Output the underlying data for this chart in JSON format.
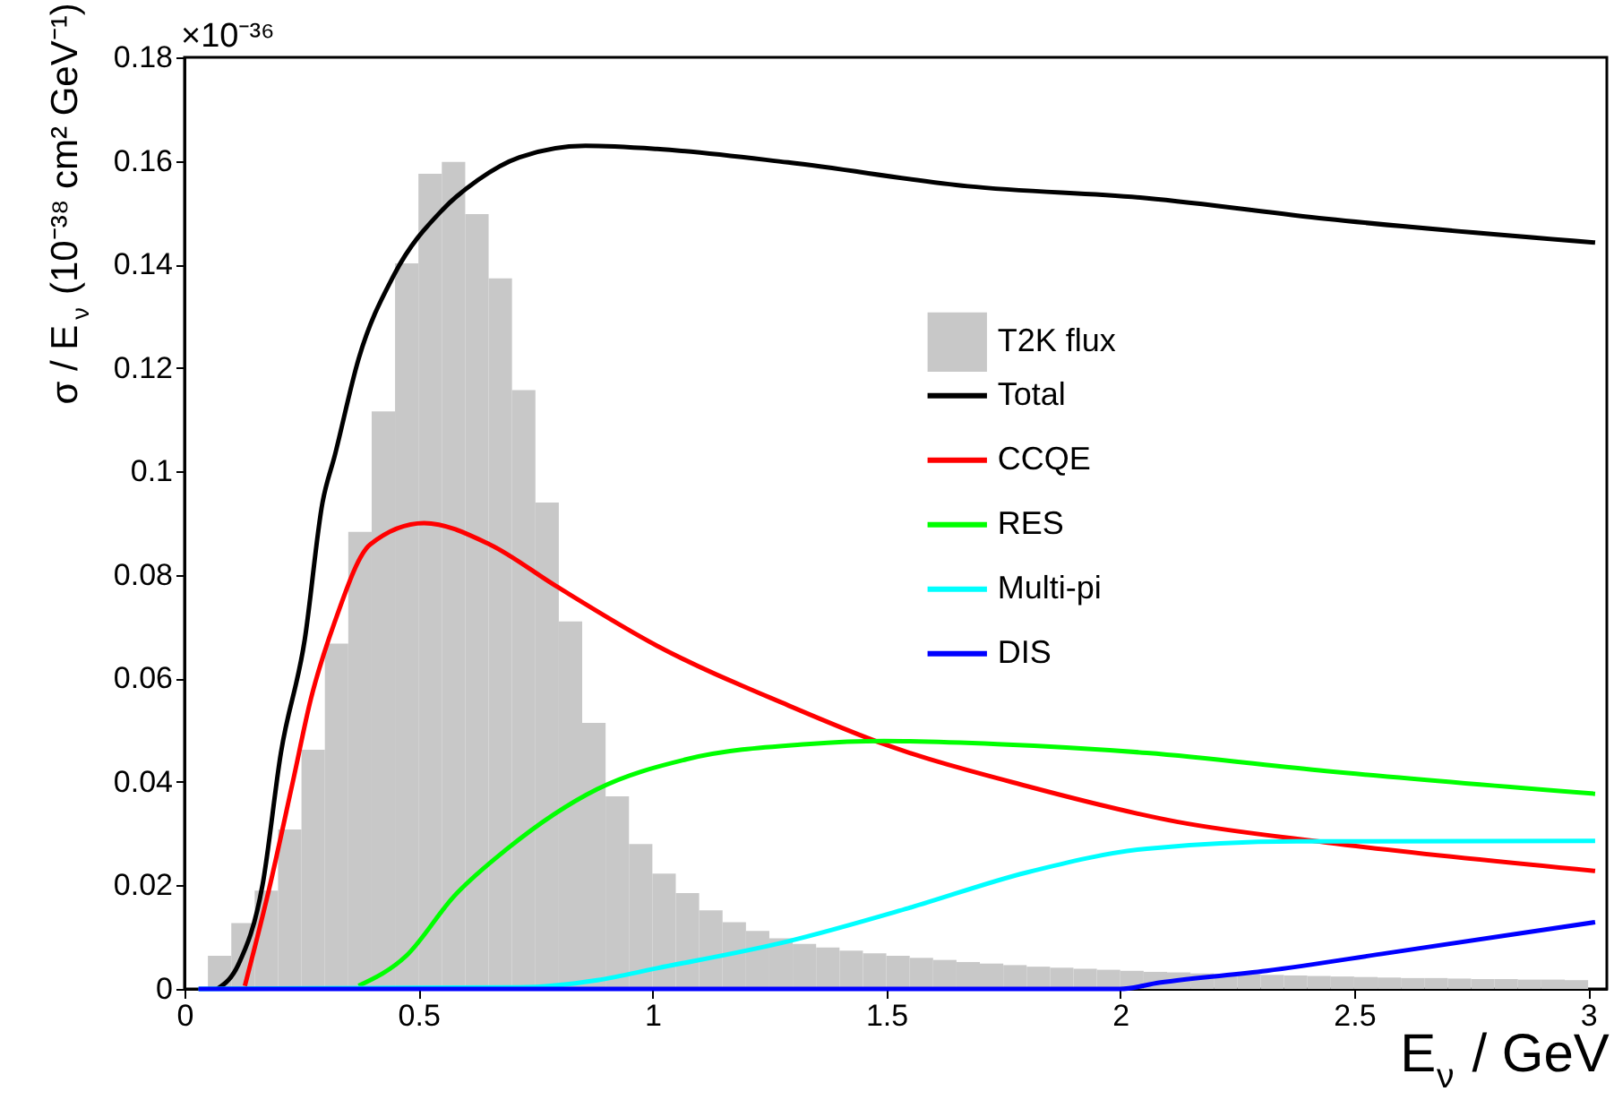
{
  "chart_data": {
    "type": "line",
    "xlabel": "E$_{ν}$ / GeV",
    "ylabel": "σ / E$_{ν}$ (10⁻³⁸ cm² GeV⁻¹)",
    "annotations": [
      "×10⁻³⁶"
    ],
    "xlim": [
      0,
      3.04
    ],
    "ylim": [
      0,
      0.18
    ],
    "xticks": [
      0,
      0.5,
      1,
      1.5,
      2,
      2.5,
      3
    ],
    "yticks": [
      0,
      0.02,
      0.04,
      0.06,
      0.08,
      0.1,
      0.12,
      0.14,
      0.16,
      0.18
    ],
    "grid": false,
    "legend": "right",
    "marker": "none",
    "line_style": "solid",
    "series": [
      {
        "name": "T2K flux",
        "type": "histogram",
        "color": "#c8c8c8",
        "bins": [
          0.05,
          0.1,
          0.15,
          0.2,
          0.25,
          0.3,
          0.35,
          0.4,
          0.45,
          0.5,
          0.55,
          0.6,
          0.65,
          0.7,
          0.75,
          0.8,
          0.85,
          0.9,
          0.95,
          1.0,
          1.05,
          1.1,
          1.15,
          1.2,
          1.25,
          1.3,
          1.35,
          1.4,
          1.45,
          1.5,
          1.55,
          1.6,
          1.65,
          1.7,
          1.75,
          1.8,
          1.85,
          1.9,
          1.95,
          2.0,
          2.05,
          2.1,
          2.15,
          2.2,
          2.25,
          2.3,
          2.35,
          2.4,
          2.45,
          2.5,
          2.55,
          2.6,
          2.65,
          2.7,
          2.75,
          2.8,
          2.85,
          2.9,
          2.95,
          3.0
        ],
        "values": [
          0.0064,
          0.0127,
          0.019,
          0.0308,
          0.0462,
          0.0667,
          0.0883,
          0.1116,
          0.1402,
          0.1575,
          0.1598,
          0.1497,
          0.1373,
          0.1157,
          0.094,
          0.071,
          0.0514,
          0.0372,
          0.028,
          0.0223,
          0.0185,
          0.0152,
          0.0129,
          0.0112,
          0.0098,
          0.0087,
          0.008,
          0.0074,
          0.0069,
          0.0064,
          0.006,
          0.0056,
          0.0052,
          0.0049,
          0.0046,
          0.0043,
          0.0041,
          0.0039,
          0.0037,
          0.0035,
          0.0033,
          0.0032,
          0.003,
          0.0029,
          0.0028,
          0.0027,
          0.0026,
          0.0025,
          0.0024,
          0.0023,
          0.0022,
          0.0021,
          0.0021,
          0.002,
          0.0019,
          0.0019,
          0.0018,
          0.0018,
          0.0017
        ]
      },
      {
        "name": "Total",
        "color": "#000000",
        "x": [
          0.07,
          0.115,
          0.167,
          0.206,
          0.257,
          0.295,
          0.321,
          0.372,
          0.448,
          0.551,
          0.627,
          0.716,
          0.857,
          1.01,
          1.29,
          1.674,
          2.057,
          2.44,
          3.015
        ],
        "values": [
          0,
          0.0047,
          0.0202,
          0.0456,
          0.0675,
          0.094,
          0.103,
          0.1217,
          0.138,
          0.1505,
          0.1563,
          0.1607,
          0.1629,
          0.1623,
          0.1597,
          0.1551,
          0.1528,
          0.1488,
          0.1442
        ]
      },
      {
        "name": "CCQE",
        "color": "#ff0000",
        "x": [
          0.129,
          0.18,
          0.231,
          0.27,
          0.321,
          0.397,
          0.512,
          0.652,
          0.793,
          1.01,
          1.29,
          1.495,
          1.8,
          2.121,
          2.44,
          3.015
        ],
        "values": [
          0.0006,
          0.019,
          0.0398,
          0.056,
          0.0709,
          0.0859,
          0.09,
          0.0859,
          0.0779,
          0.0663,
          0.0548,
          0.0473,
          0.0392,
          0.0323,
          0.0283,
          0.0228
        ]
      },
      {
        "name": "RES",
        "color": "#00ff00",
        "x": [
          0.372,
          0.474,
          0.576,
          0.69,
          0.882,
          1.074,
          1.33,
          1.495,
          1.738,
          2.057,
          2.44,
          3.015
        ],
        "values": [
          0.0006,
          0.0064,
          0.0179,
          0.0271,
          0.0386,
          0.0444,
          0.0473,
          0.0479,
          0.0473,
          0.0456,
          0.0421,
          0.0377
        ]
      },
      {
        "name": "Multi-pi",
        "color": "#00ffff",
        "x": [
          0.03,
          0.716,
          0.882,
          1.01,
          1.29,
          1.547,
          1.8,
          2.057,
          2.377,
          3.015
        ],
        "values": [
          0,
          0.0003,
          0.0017,
          0.004,
          0.0092,
          0.0156,
          0.0225,
          0.0271,
          0.0285,
          0.0286
        ]
      },
      {
        "name": "DIS",
        "color": "#0000ff",
        "x": [
          0.03,
          2.0,
          2.083,
          2.313,
          2.569,
          3.015
        ],
        "values": [
          0,
          0,
          0.0012,
          0.0035,
          0.0069,
          0.0129
        ]
      }
    ]
  }
}
